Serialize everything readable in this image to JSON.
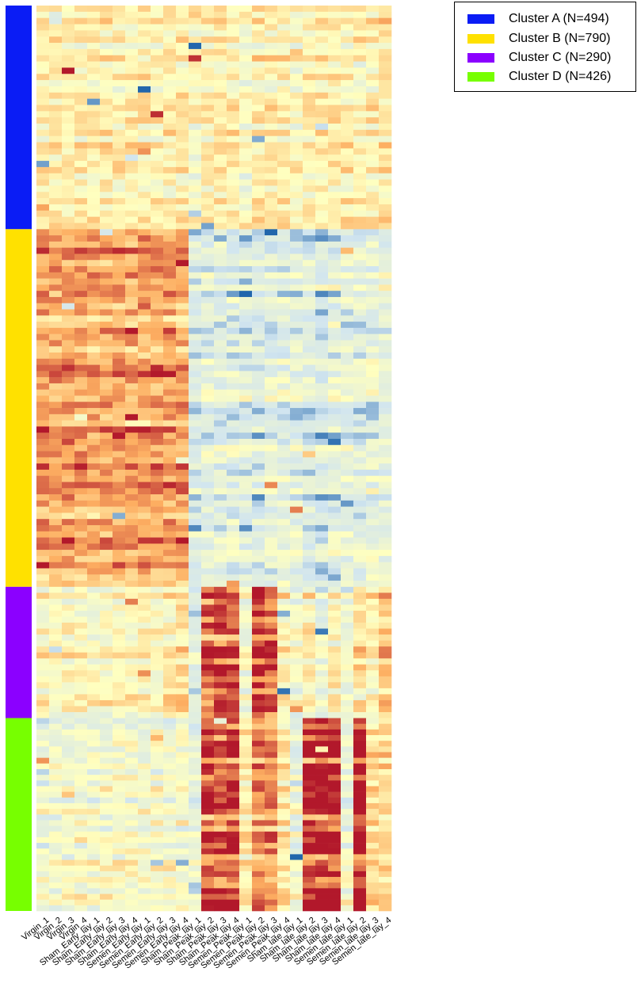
{
  "chart_data": {
    "type": "heatmap",
    "title": "",
    "xlabel": "",
    "ylabel": "",
    "columns": [
      "Virgin_1",
      "Virgin_2",
      "Virgin_3",
      "Virgin_4",
      "Sham_Early_lay_1",
      "Sham_Early_lay_2",
      "Sham_Early_lay_3",
      "Sham_Early_lay_4",
      "Semen_Early_lay_1",
      "Semen_Early_lay_2",
      "Semen_Early_lay_3",
      "Semen_Early_lay_4",
      "Sham_Peak_lay_1",
      "Sham_Peak_lay_2",
      "Sham_Peak_lay_3",
      "Sham_Peak_lay_4",
      "Semen_Peak_lay_1",
      "Semen_Peak_lay_2",
      "Semen_Peak_lay_3",
      "Semen_Peak_lay_4",
      "Sham_late_lay_1",
      "Sham_late_lay_2",
      "Sham_late_lay_3",
      "Sham_late_lay_4",
      "Semen_late_lay_1",
      "Semen_late_lay_2",
      "Semen_late_lay_3",
      "Semen_late_lay_4"
    ],
    "clusters": [
      {
        "name": "Cluster A (N=494)",
        "size": 494,
        "color": "#0a1cf5",
        "profile": [
          0.1,
          0.1,
          0.1,
          0.1,
          0.1,
          0.1,
          0.1,
          0.1,
          0.1,
          0.1,
          0.1,
          0.1,
          0,
          0.1,
          0.1,
          0.1,
          0,
          0.1,
          0.1,
          0.1,
          0,
          0.1,
          0.1,
          0.1,
          0.1,
          0.1,
          0.1,
          0.15
        ]
      },
      {
        "name": "Cluster B (N=790)",
        "size": 790,
        "color": "#ffe100",
        "profile": [
          0.55,
          0.55,
          0.55,
          0.55,
          0.5,
          0.5,
          0.5,
          0.5,
          0.55,
          0.55,
          0.55,
          0.5,
          -0.35,
          -0.3,
          -0.3,
          -0.3,
          -0.35,
          -0.4,
          -0.3,
          -0.3,
          -0.3,
          -0.35,
          -0.45,
          -0.35,
          -0.3,
          -0.3,
          -0.25,
          -0.25
        ]
      },
      {
        "name": "Cluster C (N=290)",
        "size": 290,
        "color": "#8b00ff",
        "profile": [
          0.05,
          0,
          0.05,
          0.05,
          0,
          0.05,
          0.05,
          0.05,
          0.05,
          0.05,
          0.1,
          0.25,
          -0.3,
          0.75,
          0.8,
          0.75,
          -0.1,
          0.8,
          0.7,
          0.1,
          -0.1,
          0.1,
          -0.2,
          0.1,
          -0.15,
          0.2,
          0.1,
          0.35
        ]
      },
      {
        "name": "Cluster D (N=426)",
        "size": 426,
        "color": "#77ff00",
        "profile": [
          -0.2,
          -0.15,
          -0.1,
          -0.1,
          -0.15,
          -0.1,
          -0.1,
          -0.1,
          -0.15,
          -0.1,
          -0.1,
          -0.1,
          -0.25,
          0.8,
          0.7,
          0.8,
          0.1,
          0.6,
          0.55,
          0.1,
          -0.2,
          1.0,
          0.95,
          0.9,
          -0.2,
          1.0,
          0.2,
          0.25
        ]
      }
    ],
    "color_scale": {
      "low": "#2166ac",
      "mid": "#ffffbf",
      "high": "#b2182b"
    },
    "legend": {
      "position": "top-right"
    }
  }
}
